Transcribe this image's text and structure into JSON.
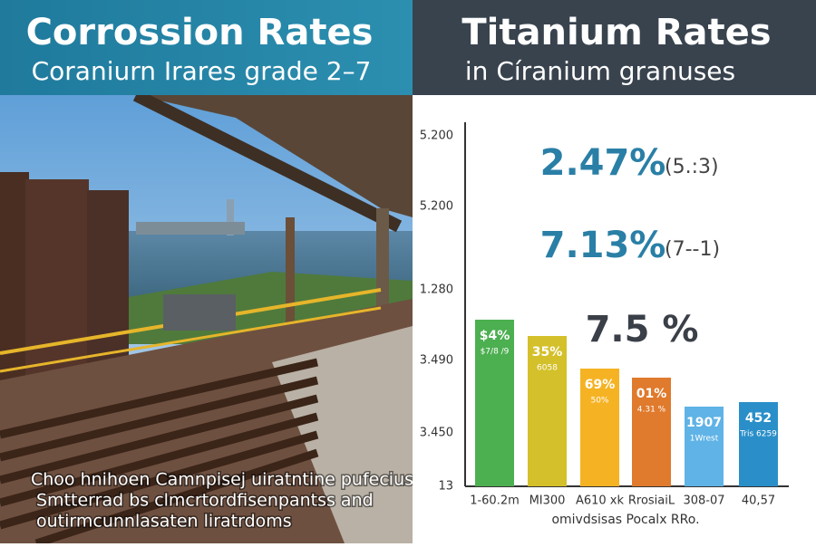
{
  "left_panel": {
    "title": "Corrossion Rates",
    "subtitle": "Coraniurn Irares grade 2–7",
    "caption": [
      "Choo hnihoen Camnpisej uiratntine pufecius",
      "Smtterrad bs clmcrtordfisenpantss and",
      "outirmcunnlasaten liratrdoms"
    ]
  },
  "right_panel": {
    "title": "Titanium Rates",
    "subtitle": "in Círanium granuses",
    "axis_labels": [
      "5.200",
      "5.200",
      "1.280",
      "3.490",
      "3.450",
      "13"
    ],
    "annotations": [
      {
        "main": "2.47%",
        "note": "(5.:3)"
      },
      {
        "main": "7.13%",
        "note": "(7-‑1)"
      },
      {
        "main": "7.5 %"
      }
    ],
    "bars": [
      {
        "label": "$4%",
        "sublabel": "$7/8 /9",
        "category": "1-60.2m"
      },
      {
        "label": "35%",
        "sublabel": "6058",
        "category": "MI300"
      },
      {
        "label": "69%",
        "sublabel": "50%",
        "category": "A610 xk"
      },
      {
        "label": "01%",
        "sublabel": "4.31 %",
        "category": "RrosiaiL"
      },
      {
        "label": "1907",
        "sublabel": "1Wrest",
        "category": "308-07"
      },
      {
        "label": "452",
        "sublabel": "Tris 6259",
        "category": "40,57"
      }
    ],
    "footer": "omivdsisas Pocalx RRo."
  }
}
